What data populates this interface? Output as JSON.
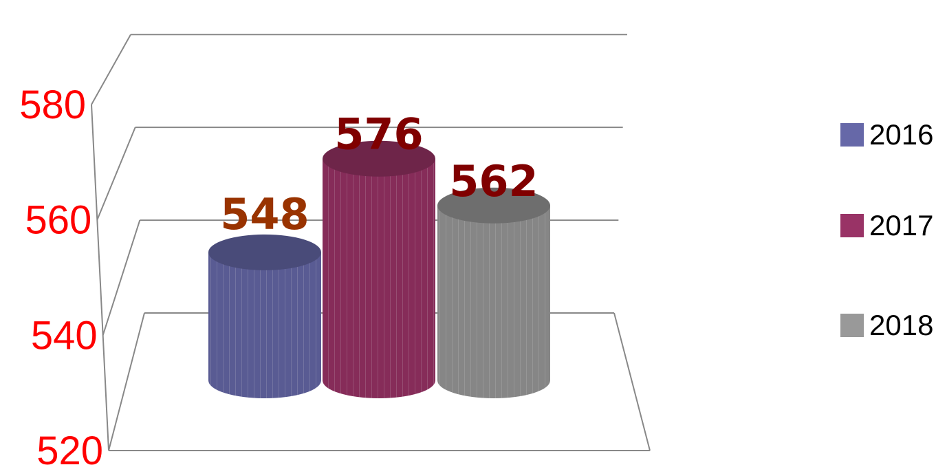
{
  "chart_data": {
    "type": "bar",
    "style": "3d-cylinder",
    "categories": [
      "2016",
      "2017",
      "2018"
    ],
    "values": [
      548,
      576,
      562
    ],
    "data_labels": [
      "548",
      "576",
      "562"
    ],
    "ylim": [
      520,
      580
    ],
    "yticks": [
      "520",
      "540",
      "560",
      "580"
    ],
    "grid": true,
    "legend_position": "right",
    "title": "",
    "xlabel": "",
    "ylabel": ""
  },
  "legend": {
    "items": [
      {
        "label": "2016",
        "color": "#6668a8"
      },
      {
        "label": "2017",
        "color": "#993366"
      },
      {
        "label": "2018",
        "color": "#999999"
      }
    ]
  },
  "colors": {
    "tick_label": "#ff0000",
    "data_label": [
      "#993300",
      "#800000",
      "#800000"
    ],
    "bars": [
      "#6668a8",
      "#993366",
      "#999999"
    ],
    "grid": "#888888"
  }
}
